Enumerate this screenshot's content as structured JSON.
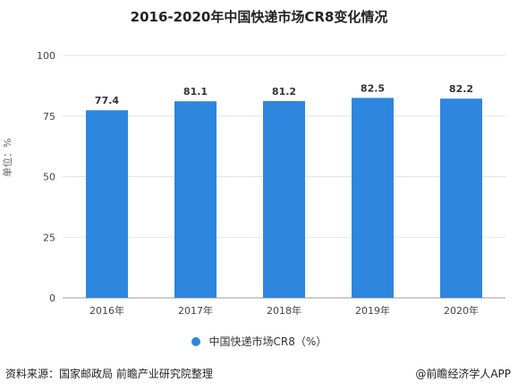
{
  "chart_data": {
    "type": "bar",
    "title": "2016-2020年中国快递市场CR8变化情况",
    "ylabel": "单位：%",
    "xlabel": "",
    "categories": [
      "2016年",
      "2017年",
      "2018年",
      "2019年",
      "2020年"
    ],
    "series": [
      {
        "name": "中国快递市场CR8（%）",
        "values": [
          77.4,
          81.1,
          81.2,
          82.5,
          82.2
        ]
      }
    ],
    "ylim": [
      0,
      100
    ],
    "yticks": [
      0,
      25,
      50,
      75,
      100
    ],
    "grid": true,
    "legend_position": "bottom",
    "bar_color": "#2e86de"
  },
  "footer": {
    "source": "资料来源：国家邮政局 前瞻产业研究院整理",
    "credit": "@前瞻经济学人APP"
  }
}
